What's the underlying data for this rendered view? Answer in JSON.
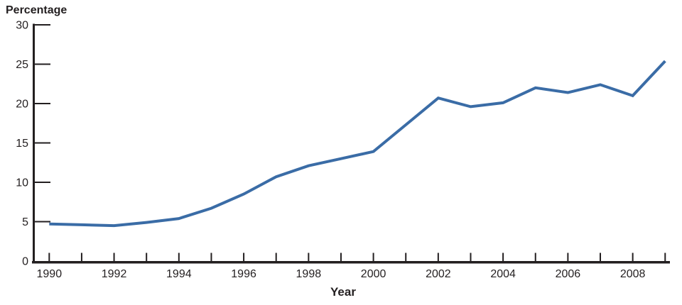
{
  "figure": {
    "y_axis_title": "Percentage",
    "x_axis_title": "Year"
  },
  "chart_data": {
    "type": "line",
    "title": "",
    "xlabel": "Year",
    "ylabel": "Percentage",
    "x": [
      1990,
      1991,
      1992,
      1993,
      1994,
      1995,
      1996,
      1997,
      1998,
      1999,
      2000,
      2001,
      2002,
      2003,
      2004,
      2005,
      2006,
      2007,
      2008,
      2009
    ],
    "series": [
      {
        "name": "Percentage",
        "values": [
          4.7,
          4.6,
          4.5,
          4.9,
          5.4,
          6.7,
          8.5,
          10.7,
          12.1,
          13.0,
          13.9,
          17.3,
          20.7,
          19.6,
          20.1,
          22.0,
          21.4,
          22.4,
          21.0,
          25.4
        ]
      }
    ],
    "xlim": [
      1990,
      2009
    ],
    "ylim": [
      0,
      30
    ],
    "y_ticks": [
      0,
      5,
      10,
      15,
      20,
      25,
      30
    ],
    "x_label_years": [
      1990,
      1992,
      1994,
      1996,
      1998,
      2000,
      2002,
      2004,
      2006,
      2008
    ],
    "grid": false,
    "legend": "none",
    "line_color": "#3a6ca6",
    "axis_color": "#231f20"
  }
}
